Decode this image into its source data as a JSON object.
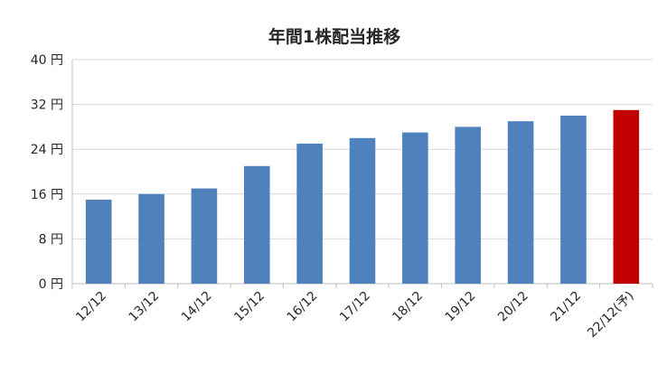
{
  "chart_data": {
    "type": "bar",
    "title": "年間1株配当推移",
    "xlabel": "",
    "ylabel": "",
    "categories": [
      "12/12",
      "13/12",
      "14/12",
      "15/12",
      "16/12",
      "17/12",
      "18/12",
      "19/12",
      "20/12",
      "21/12",
      "22/12(予)"
    ],
    "values": [
      15,
      16,
      17,
      21,
      25,
      26,
      27,
      28,
      29,
      30,
      31
    ],
    "ylim": [
      0,
      40
    ],
    "y_ticks": [
      0,
      8,
      16,
      24,
      32,
      40
    ],
    "y_tick_labels": [
      "0 円",
      "8 円",
      "16 円",
      "24 円",
      "32 円",
      "40 円"
    ],
    "grid": true,
    "legend": "none",
    "colors": {
      "bar": "#4F81BD",
      "forecast_bar": "#C00000",
      "grid": "#D9D9D9",
      "axis": "#BFBFBF"
    },
    "forecast_index": 10
  }
}
